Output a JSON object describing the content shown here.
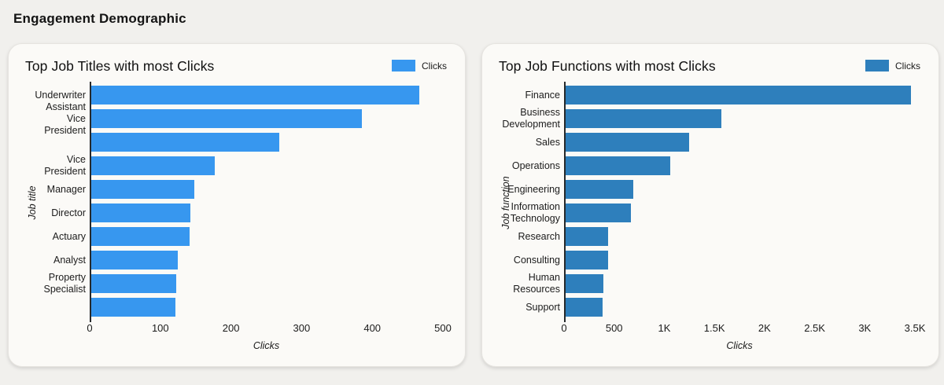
{
  "page": {
    "title": "Engagement Demographic"
  },
  "chart_data": [
    {
      "type": "bar",
      "orientation": "horizontal",
      "title": "Top Job Titles with most Clicks",
      "legend": [
        "Clicks"
      ],
      "bar_color": "#3797ef",
      "xlabel": "Clicks",
      "ylabel": "Job title",
      "categories": [
        "Underwriter",
        "Assistant Vice President",
        "",
        "Vice President",
        "Manager",
        "Director",
        "Actuary",
        "Analyst",
        "Property Specialist",
        ""
      ],
      "values": [
        467,
        385,
        268,
        177,
        148,
        143,
        141,
        125,
        123,
        121
      ],
      "xlim": [
        0,
        500
      ],
      "xticks": [
        "0",
        "100",
        "200",
        "300",
        "400",
        "500"
      ],
      "xtick_values": [
        0,
        100,
        200,
        300,
        400,
        500
      ],
      "grid": false,
      "legend_position": "top-right"
    },
    {
      "type": "bar",
      "orientation": "horizontal",
      "title": "Top Job Functions with most Clicks",
      "legend": [
        "Clicks"
      ],
      "bar_color": "#2e7fbc",
      "xlabel": "Clicks",
      "ylabel": "Job function",
      "categories": [
        "Finance",
        "Business Development",
        "Sales",
        "Operations",
        "Engineering",
        "Information Technology",
        "Research",
        "Consulting",
        "Human Resources",
        "Support"
      ],
      "values": [
        3460,
        1570,
        1250,
        1060,
        690,
        665,
        440,
        440,
        390,
        385
      ],
      "xlim": [
        0,
        3500
      ],
      "xticks": [
        "0",
        "500",
        "1K",
        "1.5K",
        "2K",
        "2.5K",
        "3K",
        "3.5K"
      ],
      "xtick_values": [
        0,
        500,
        1000,
        1500,
        2000,
        2500,
        3000,
        3500
      ],
      "grid": false,
      "legend_position": "top-right"
    }
  ]
}
